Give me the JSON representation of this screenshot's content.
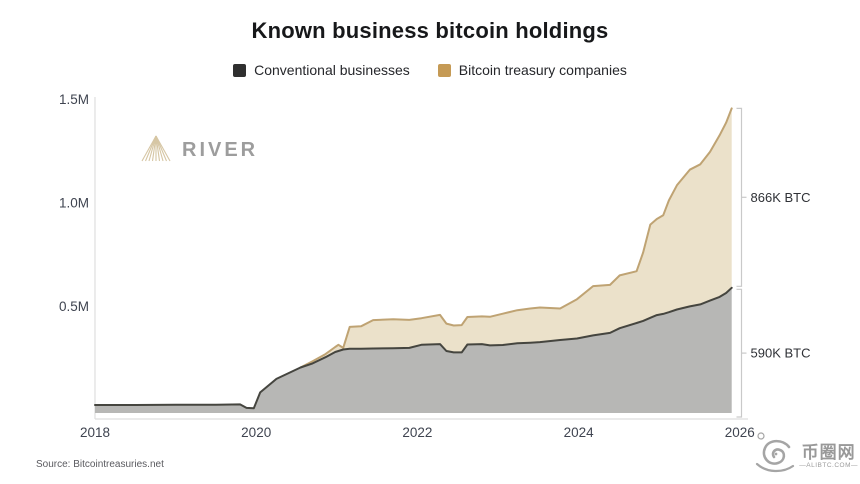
{
  "title": "Known business bitcoin holdings",
  "legend": [
    {
      "label": "Conventional businesses",
      "color": "#2f2f2f"
    },
    {
      "label": "Bitcoin treasury companies",
      "color": "#c59a55"
    }
  ],
  "brand_watermark": {
    "name": "RIVER"
  },
  "source": {
    "text": "Source: Bitcointreasuries.net"
  },
  "site_watermark": {
    "name": "币圈网",
    "domain": "—ALIBTC.COM—"
  },
  "chart_data": {
    "type": "area",
    "stacked": true,
    "title": "Known business bitcoin holdings",
    "unit": "K BTC",
    "xlim": [
      2018,
      2026
    ],
    "ylim": [
      0,
      1500
    ],
    "grid": false,
    "legend_position": "top",
    "xticks": [
      2018,
      2020,
      2022,
      2024,
      2026
    ],
    "yticks": [
      {
        "value": 500,
        "label": "0.5M"
      },
      {
        "value": 1000,
        "label": "1.0M"
      },
      {
        "value": 1500,
        "label": "1.5M"
      }
    ],
    "x": [
      2018.0,
      2018.5,
      2019.0,
      2019.5,
      2019.8,
      2019.88,
      2019.97,
      2020.05,
      2020.25,
      2020.55,
      2020.7,
      2020.86,
      2020.98,
      2021.02,
      2021.08,
      2021.16,
      2021.3,
      2021.45,
      2021.7,
      2021.9,
      2022.05,
      2022.28,
      2022.36,
      2022.45,
      2022.55,
      2022.62,
      2022.8,
      2022.9,
      2023.06,
      2023.24,
      2023.4,
      2023.52,
      2023.77,
      2023.98,
      2024.18,
      2024.39,
      2024.51,
      2024.72,
      2024.8,
      2024.89,
      2024.97,
      2025.05,
      2025.12,
      2025.22,
      2025.38,
      2025.51,
      2025.63,
      2025.75,
      2025.83,
      2025.9
    ],
    "series": [
      {
        "name": "Conventional businesses",
        "fill": "#b7b7b5",
        "line": "#45453f",
        "values": [
          24,
          24,
          25,
          25,
          27,
          10,
          8,
          85,
          150,
          205,
          225,
          255,
          280,
          285,
          292,
          296,
          296,
          297,
          298,
          300,
          315,
          318,
          285,
          278,
          278,
          316,
          318,
          312,
          314,
          322,
          325,
          328,
          338,
          345,
          360,
          372,
          395,
          420,
          430,
          445,
          458,
          464,
          472,
          485,
          500,
          510,
          528,
          546,
          565,
          590
        ]
      },
      {
        "name": "Bitcoin treasury companies",
        "fill": "#ebe1ca",
        "line": "#bfa373",
        "values": [
          0,
          0,
          0,
          0,
          0,
          0,
          0,
          0,
          0,
          0,
          10,
          15,
          24,
          30,
          8,
          105,
          108,
          137,
          140,
          135,
          128,
          141,
          132,
          130,
          132,
          133,
          134,
          138,
          151,
          160,
          165,
          167,
          152,
          190,
          238,
          232,
          255,
          250,
          330,
          450,
          464,
          476,
          540,
          600,
          660,
          676,
          718,
          780,
          822,
          866
        ]
      }
    ],
    "right_annotations": [
      {
        "label": "866K BTC",
        "series": "Bitcoin treasury companies",
        "value": 866
      },
      {
        "label": "590K BTC",
        "series": "Conventional businesses",
        "value": 590
      }
    ],
    "axis_color": "#dedede",
    "bracket_color": "#c9c9c9",
    "tick_color": "#3f4450"
  }
}
